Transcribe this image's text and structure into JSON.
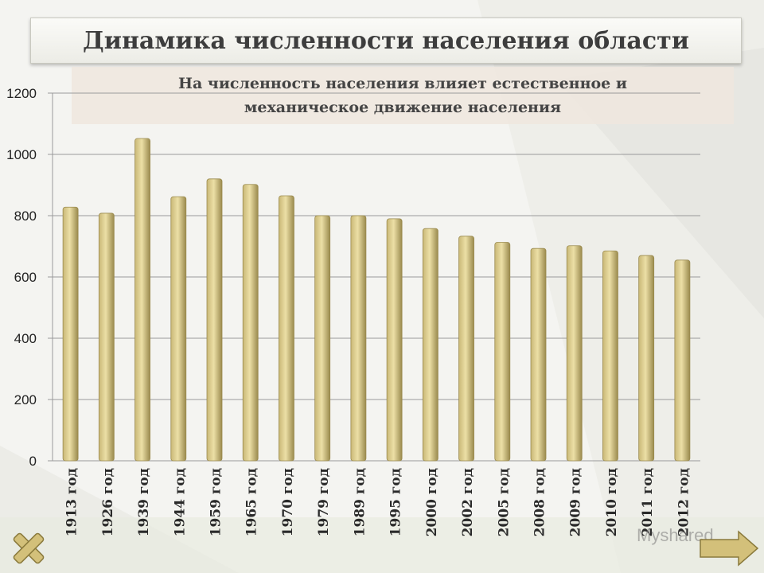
{
  "slide": {
    "title": "Динамика численности населения области",
    "subtitle_lines": [
      "На численность населения влияет естественное и",
      "механическое движение населения"
    ],
    "watermark": "Myshared"
  },
  "colors": {
    "bar_light": "#ecdfa6",
    "bar_mid": "#c9b877",
    "bar_dark": "#9a8a4e",
    "grid": "#9a9a9a"
  },
  "chart_data": {
    "type": "bar",
    "categories": [
      "1913 год",
      "1926 год",
      "1939 год",
      "1944 год",
      "1959 год",
      "1965 год",
      "1970 год",
      "1979 год",
      "1989 год",
      "1995 год",
      "2000 год",
      "2002 год",
      "2005 год",
      "2008 год",
      "2009 год",
      "2010 год",
      "2011 год",
      "2012 год"
    ],
    "values": [
      828,
      808,
      1052,
      862,
      920,
      902,
      865,
      800,
      800,
      790,
      758,
      733,
      713,
      693,
      702,
      685,
      670,
      655
    ],
    "ylim": [
      0,
      1200
    ],
    "yticks": [
      0,
      200,
      400,
      600,
      800,
      1000,
      1200
    ],
    "grid": true,
    "legend": "none",
    "title": "",
    "xlabel": "",
    "ylabel": ""
  }
}
